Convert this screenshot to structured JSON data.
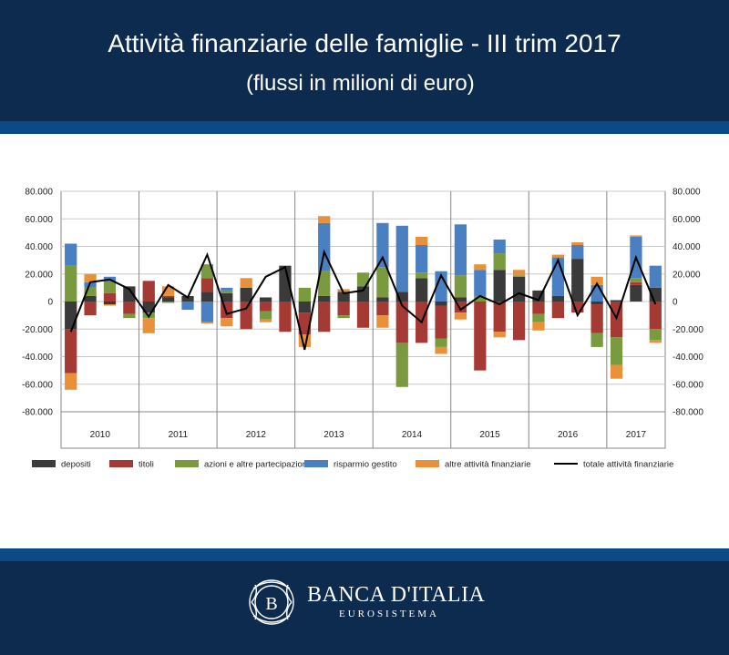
{
  "header": {
    "title": "Attività finanziarie delle famiglie - III trim 2017",
    "subtitle": "(flussi in milioni di euro)"
  },
  "footer": {
    "bank_name": "BANCA D'ITALIA",
    "bank_sub": "EUROSISTEMA"
  },
  "colors": {
    "header_bg": "#0d2a4f",
    "stripe": "#0b4a86",
    "depositi": "#3a3a3a",
    "titoli": "#a53a35",
    "azioni": "#7a9a3f",
    "risparmio": "#4a7fc1",
    "altre": "#e8903a",
    "totale": "#000000"
  },
  "chart_data": {
    "type": "bar",
    "stacked": true,
    "ylim": [
      -80000,
      80000
    ],
    "y_ticks": [
      "80.000",
      "60.000",
      "40.000",
      "20.000",
      "0",
      "-20.000",
      "-40.000",
      "-60.000",
      "-80.000"
    ],
    "y_ticks_right": [
      "80.000",
      "60.000",
      "40.000",
      "20.000",
      "0",
      "-20.000",
      "-40.000",
      "-60.000",
      "-80.000"
    ],
    "year_labels": [
      "2010",
      "2011",
      "2012",
      "2013",
      "2014",
      "2015",
      "2016",
      "2017"
    ],
    "quarters_per_year": [
      4,
      4,
      4,
      4,
      4,
      4,
      4,
      3
    ],
    "grid": true,
    "legend_position": "bottom",
    "series": [
      {
        "name": "depositi",
        "color": "#3a3a3a",
        "values": [
          -20000,
          4000,
          -2000,
          11000,
          -8000,
          3000,
          4000,
          7000,
          6000,
          10000,
          3000,
          26000,
          -8000,
          4000,
          7000,
          11000,
          3000,
          7000,
          17000,
          -3000,
          3000,
          0,
          23000,
          18000,
          8000,
          4000,
          31000,
          -2000,
          1000,
          12000,
          10000
        ]
      },
      {
        "name": "titoli",
        "color": "#a53a35",
        "values": [
          -32000,
          -10000,
          6000,
          -9000,
          15000,
          1000,
          0,
          10000,
          -12000,
          -20000,
          -7000,
          -22000,
          -16000,
          -22000,
          -10000,
          -19000,
          -10000,
          -30000,
          -30000,
          -24000,
          -8000,
          -50000,
          -22000,
          -28000,
          -9000,
          -12000,
          -8000,
          -21000,
          -26000,
          2000,
          -20000
        ]
      },
      {
        "name": "azioni e altre partecipazioni",
        "color": "#7a9a3f",
        "values": [
          26000,
          6000,
          8000,
          -3000,
          -4000,
          -1000,
          0,
          10000,
          2000,
          0,
          -6000,
          0,
          10000,
          18000,
          -2000,
          10000,
          22000,
          -32000,
          4000,
          -6000,
          16000,
          4000,
          12000,
          1000,
          -6000,
          0,
          0,
          -10000,
          -20000,
          3000,
          -8000
        ]
      },
      {
        "name": "risparmio gestito",
        "color": "#4a7fc1",
        "values": [
          16000,
          4000,
          4000,
          0,
          0,
          0,
          -6000,
          -15000,
          2000,
          0,
          0,
          0,
          0,
          35000,
          0,
          0,
          32000,
          48000,
          20000,
          22000,
          37000,
          19000,
          10000,
          0,
          0,
          28000,
          10000,
          12000,
          0,
          30000,
          16000
        ]
      },
      {
        "name": "altre attività finanziarie",
        "color": "#e8903a",
        "values": [
          -12000,
          6000,
          -1000,
          0,
          -11000,
          7000,
          0,
          -1000,
          -6000,
          7000,
          -2000,
          0,
          -9000,
          5000,
          2000,
          0,
          -9000,
          0,
          6000,
          -5000,
          -5000,
          4000,
          -4000,
          4000,
          -6000,
          2000,
          2000,
          6000,
          -10000,
          1000,
          -2000
        ]
      },
      {
        "name": "totale attività finanziarie",
        "color": "#000000",
        "type": "line",
        "values": [
          -22000,
          14000,
          16000,
          9000,
          -11000,
          12000,
          3000,
          34000,
          -9000,
          -5000,
          18000,
          25000,
          -35000,
          36000,
          6000,
          8000,
          32000,
          -3000,
          -15000,
          19000,
          -6000,
          4000,
          -2000,
          6000,
          1000,
          30000,
          -10000,
          13000,
          -12000,
          32000,
          -2000
        ]
      }
    ]
  }
}
